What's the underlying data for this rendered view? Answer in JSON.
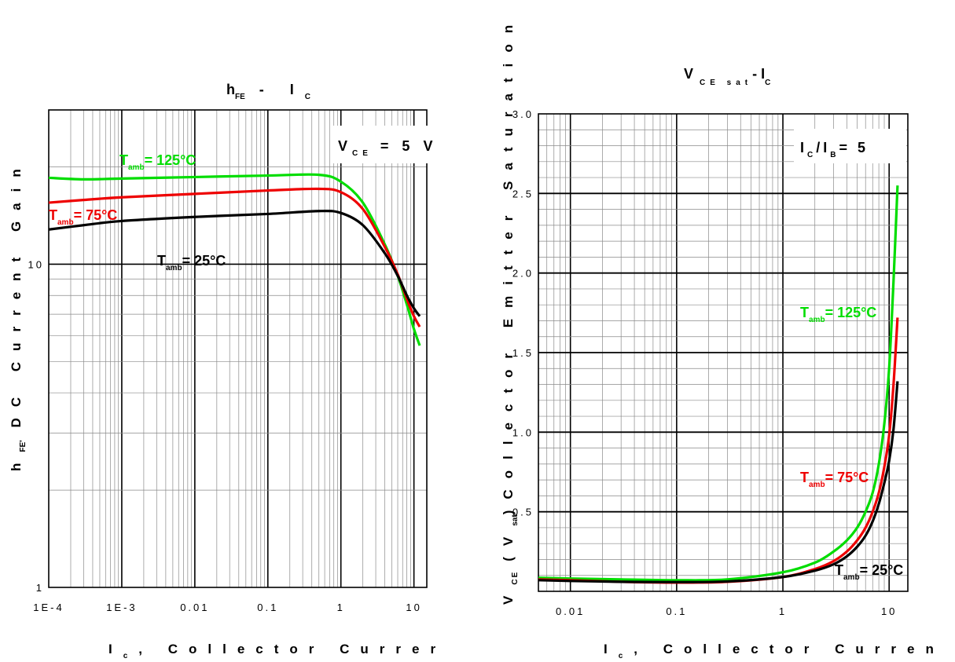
{
  "chart_data": [
    {
      "type": "line",
      "title": "h FE - I C",
      "title_main": "h",
      "title_sub": "FE",
      "title_mid": "- I",
      "title_sub2": "C",
      "xlabel": "I c , Collector Curren",
      "xlabel_main": "I",
      "xlabel_sub": "c",
      "xlabel_rest": ", Collector Currer",
      "ylabel": "hFE' DC Current Gain",
      "ylabel_main": "h",
      "ylabel_sub": "FE'",
      "ylabel_rest": "DC Current Gain",
      "x_scale": "log",
      "y_scale": "log",
      "xlim": [
        0.0001,
        15
      ],
      "ylim": [
        1,
        30
      ],
      "x_ticks": [
        0.0001,
        0.001,
        0.01,
        0.1,
        1,
        10
      ],
      "x_tick_labels": [
        "1E-4",
        "1E-3",
        "0.01",
        "0.1",
        "1",
        "10"
      ],
      "y_ticks": [
        1,
        10
      ],
      "y_tick_labels": [
        "1",
        "10"
      ],
      "grid": true,
      "condition": {
        "main": "V",
        "sub": "CE",
        "rest": "= 5 V"
      },
      "series": [
        {
          "name": "Tamb= 125°C",
          "color": "#00dd00",
          "label_main": "T",
          "label_sub": "amb",
          "label_rest": "= 125°C",
          "x": [
            0.0001,
            0.0003,
            0.001,
            0.01,
            0.1,
            0.5,
            1,
            2,
            4,
            6,
            8,
            10,
            12
          ],
          "y": [
            18.5,
            18.3,
            18.4,
            18.6,
            18.8,
            18.9,
            18.0,
            15.5,
            11.5,
            9.2,
            7.5,
            6.3,
            5.6
          ]
        },
        {
          "name": "Tamb= 75°C",
          "color": "#ee0000",
          "label_main": "T",
          "label_sub": "amb",
          "label_rest": "= 75°C",
          "x": [
            0.0001,
            0.0003,
            0.001,
            0.01,
            0.1,
            0.5,
            1,
            2,
            4,
            6,
            8,
            10,
            12
          ],
          "y": [
            15.5,
            15.8,
            16.1,
            16.5,
            16.9,
            17.1,
            16.7,
            14.8,
            11.3,
            9.3,
            7.8,
            6.9,
            6.4
          ]
        },
        {
          "name": "Tamb= 25°C",
          "color": "#000000",
          "label_main": "T",
          "label_sub": "amb",
          "label_rest": "= 25°C",
          "x": [
            0.0001,
            0.0003,
            0.001,
            0.01,
            0.1,
            0.5,
            1,
            2,
            4,
            6,
            8,
            10,
            12
          ],
          "y": [
            12.8,
            13.2,
            13.6,
            14.0,
            14.3,
            14.6,
            14.4,
            13.2,
            10.8,
            9.2,
            8.0,
            7.3,
            6.9
          ]
        }
      ]
    },
    {
      "type": "line",
      "title": "V CE sat - I C",
      "title_main": "V",
      "title_sub": "CE sat",
      "title_mid": "- I",
      "title_sub2": "C",
      "xlabel": "I c , Collector Curren",
      "xlabel_main": "I",
      "xlabel_sub": "c",
      "xlabel_rest": ", Collector Curren",
      "ylabel": "VCE (Vsat) Collector Emitter Saturation",
      "ylabel_main": "V",
      "ylabel_sub": "CE",
      "ylabel_paren": "(V",
      "ylabel_sub2": "sat",
      "ylabel_rest": ")Collector Emitter Saturation",
      "x_scale": "log",
      "y_scale": "linear",
      "xlim": [
        0.005,
        15
      ],
      "ylim": [
        0,
        3.0
      ],
      "x_ticks": [
        0.01,
        0.1,
        1,
        10
      ],
      "x_tick_labels": [
        "0.01",
        "0.1",
        "1",
        "10"
      ],
      "y_ticks": [
        0.5,
        1.0,
        1.5,
        2.0,
        2.5,
        3.0
      ],
      "y_tick_labels": [
        "0.5",
        "1.0",
        "1.5",
        "2.0",
        "2.5",
        "3.0"
      ],
      "grid": true,
      "condition": {
        "main": "I",
        "sub": "C",
        "rest": "/I",
        "sub2": "B",
        "rest2": "= 5"
      },
      "series": [
        {
          "name": "Tamb= 125°C",
          "color": "#00dd00",
          "label_main": "T",
          "label_sub": "amb",
          "label_rest": "= 125°C",
          "x": [
            0.005,
            0.01,
            0.03,
            0.1,
            0.3,
            1,
            2,
            3,
            4,
            5,
            6,
            7,
            8,
            9,
            10,
            11,
            12
          ],
          "y": [
            0.085,
            0.08,
            0.075,
            0.07,
            0.075,
            0.12,
            0.18,
            0.25,
            0.32,
            0.4,
            0.5,
            0.62,
            0.8,
            1.05,
            1.4,
            1.95,
            2.55
          ]
        },
        {
          "name": "Tamb= 75°C",
          "color": "#ee0000",
          "label_main": "T",
          "label_sub": "amb",
          "label_rest": "= 75°C",
          "x": [
            0.005,
            0.01,
            0.03,
            0.1,
            0.3,
            1,
            2,
            3,
            4,
            5,
            6,
            7,
            8,
            9,
            10,
            11,
            12
          ],
          "y": [
            0.075,
            0.07,
            0.06,
            0.055,
            0.06,
            0.09,
            0.14,
            0.19,
            0.25,
            0.32,
            0.4,
            0.5,
            0.62,
            0.78,
            0.98,
            1.3,
            1.72
          ]
        },
        {
          "name": "Tamb= 25°C",
          "color": "#000000",
          "label_main": "T",
          "label_sub": "amb",
          "label_rest": "= 25°C",
          "x": [
            0.005,
            0.01,
            0.03,
            0.1,
            0.3,
            1,
            2,
            3,
            4,
            5,
            6,
            7,
            8,
            9,
            10,
            11,
            12
          ],
          "y": [
            0.07,
            0.065,
            0.06,
            0.058,
            0.062,
            0.09,
            0.13,
            0.17,
            0.22,
            0.28,
            0.35,
            0.44,
            0.55,
            0.68,
            0.82,
            1.02,
            1.32
          ]
        }
      ]
    }
  ]
}
